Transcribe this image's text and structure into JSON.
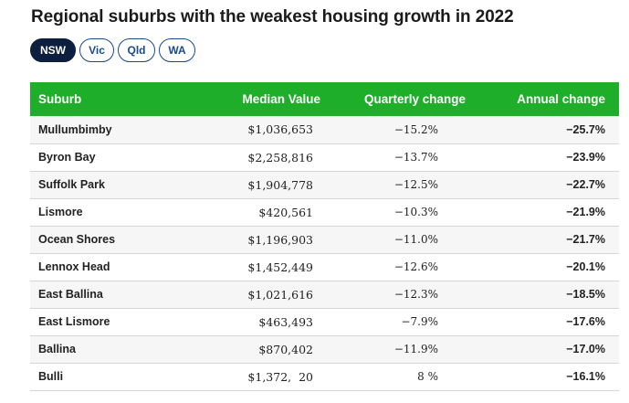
{
  "title": "Regional suburbs with the weakest housing growth in 2022",
  "tabs": [
    {
      "label": "NSW",
      "active": true
    },
    {
      "label": "Vic",
      "active": false
    },
    {
      "label": "Qld",
      "active": false
    },
    {
      "label": "WA",
      "active": false
    }
  ],
  "colors": {
    "header_green": "#1fae2a",
    "tab_active": "#0c1f3f",
    "tab_border": "#1a4b8c"
  },
  "table": {
    "headers": [
      "Suburb",
      "Median Value",
      "Quarterly change",
      "Annual change"
    ],
    "rows": [
      {
        "suburb": "Mullumbimby",
        "median": "$1,036,653",
        "quarterly": "−15.2%",
        "annual": "−25.7%"
      },
      {
        "suburb": "Byron Bay",
        "median": "$2,258,816",
        "quarterly": "−13.7%",
        "annual": "−23.9%"
      },
      {
        "suburb": "Suffolk Park",
        "median": "$1,904,778",
        "quarterly": "−12.5%",
        "annual": "−22.7%"
      },
      {
        "suburb": "Lismore",
        "median": "$420,561",
        "quarterly": "−10.3%",
        "annual": "−21.9%"
      },
      {
        "suburb": "Ocean Shores",
        "median": "$1,196,903",
        "quarterly": "−11.0%",
        "annual": "−21.7%"
      },
      {
        "suburb": "Lennox Head",
        "median": "$1,452,449",
        "quarterly": "−12.6%",
        "annual": "−20.1%"
      },
      {
        "suburb": "East Ballina",
        "median": "$1,021,616",
        "quarterly": "−12.3%",
        "annual": "−18.5%"
      },
      {
        "suburb": "East Lismore",
        "median": "$463,493",
        "quarterly": "−7.9%",
        "annual": "−17.6%"
      },
      {
        "suburb": "Ballina",
        "median": "$870,402",
        "quarterly": "−11.9%",
        "annual": "−17.0%"
      },
      {
        "suburb": "Bulli",
        "median": "$1,372,  20",
        "quarterly": "  8 %",
        "annual": "−16.1%"
      }
    ]
  }
}
